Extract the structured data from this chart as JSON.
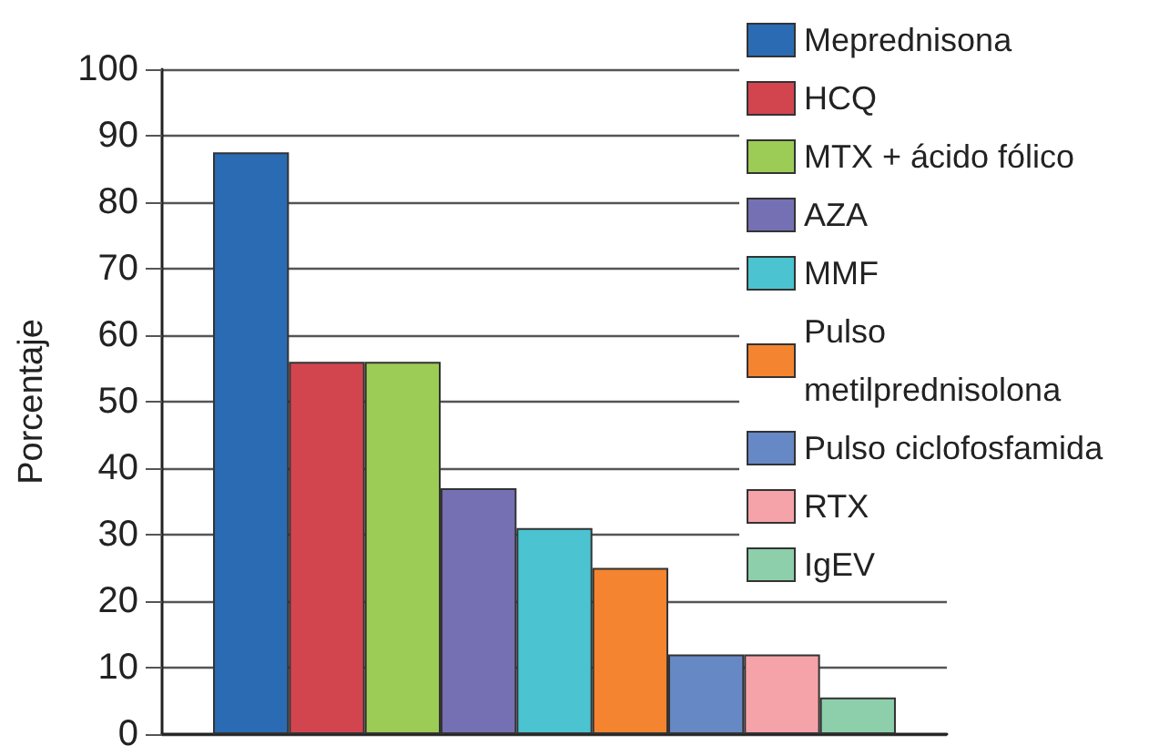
{
  "chart_data": {
    "type": "bar",
    "ylabel": "Porcentaje",
    "categories": [
      null
    ],
    "series": [
      {
        "name": "Meprednisona",
        "color": "#2a6bb3",
        "values": [
          87.5
        ]
      },
      {
        "name": "HCQ",
        "color": "#d2454f",
        "values": [
          56
        ]
      },
      {
        "name": "MTX + ácido fólico",
        "color": "#9ccc56",
        "values": [
          56
        ]
      },
      {
        "name": "AZA",
        "color": "#7570b3",
        "values": [
          37
        ]
      },
      {
        "name": "MMF",
        "color": "#4bc3d0",
        "values": [
          31
        ]
      },
      {
        "name": "Pulso metilprednisolona",
        "color": "#f48430",
        "values": [
          25
        ]
      },
      {
        "name": "Pulso ciclofosfamida",
        "color": "#6688c5",
        "values": [
          12
        ]
      },
      {
        "name": "RTX",
        "color": "#f5a3a8",
        "values": [
          12
        ]
      },
      {
        "name": "IgEV",
        "color": "#8dcfab",
        "values": [
          5.5
        ]
      }
    ],
    "ylim": [
      0,
      100
    ],
    "yticks": [
      0,
      10,
      20,
      30,
      40,
      50,
      60,
      70,
      80,
      90,
      100
    ],
    "grid": "y",
    "legend": "top right"
  }
}
